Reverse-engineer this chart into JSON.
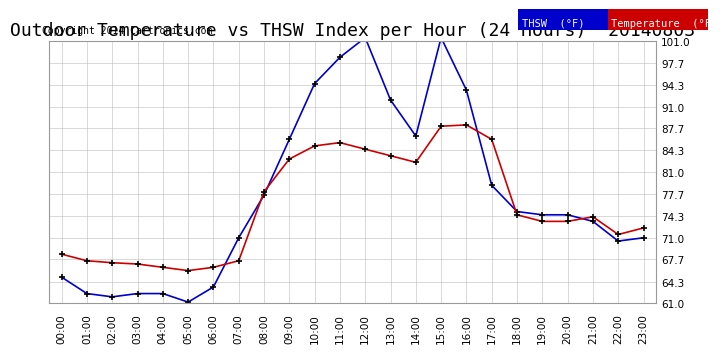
{
  "title": "Outdoor Temperature vs THSW Index per Hour (24 Hours)  20140803",
  "copyright": "Copyright 2014 Cartronics.com",
  "hours": [
    "00:00",
    "01:00",
    "02:00",
    "03:00",
    "04:00",
    "05:00",
    "06:00",
    "07:00",
    "08:00",
    "09:00",
    "10:00",
    "11:00",
    "12:00",
    "13:00",
    "14:00",
    "15:00",
    "16:00",
    "17:00",
    "18:00",
    "19:00",
    "20:00",
    "21:00",
    "22:00",
    "23:00"
  ],
  "thsw": [
    65.0,
    62.5,
    62.0,
    62.5,
    62.5,
    61.2,
    63.5,
    71.0,
    77.5,
    86.0,
    94.5,
    98.5,
    101.5,
    92.0,
    86.5,
    101.5,
    93.5,
    79.0,
    75.0,
    74.5,
    74.5,
    73.5,
    70.5,
    71.0
  ],
  "temp": [
    68.5,
    67.5,
    67.2,
    67.0,
    66.5,
    66.0,
    66.5,
    67.5,
    78.0,
    83.0,
    85.0,
    85.5,
    84.5,
    83.5,
    82.5,
    88.0,
    88.2,
    86.0,
    74.5,
    73.5,
    73.5,
    74.2,
    71.5,
    72.5
  ],
  "ylim": [
    61.0,
    101.0
  ],
  "yticks": [
    61.0,
    64.3,
    67.7,
    71.0,
    74.3,
    77.7,
    81.0,
    84.3,
    87.7,
    91.0,
    94.3,
    97.7,
    101.0
  ],
  "thsw_color": "#0000cc",
  "temp_color": "#cc0000",
  "bg_color": "#ffffff",
  "grid_color": "#bbbbbb",
  "title_fontsize": 13,
  "legend_thsw_bg": "#0000cc",
  "legend_temp_bg": "#cc0000"
}
